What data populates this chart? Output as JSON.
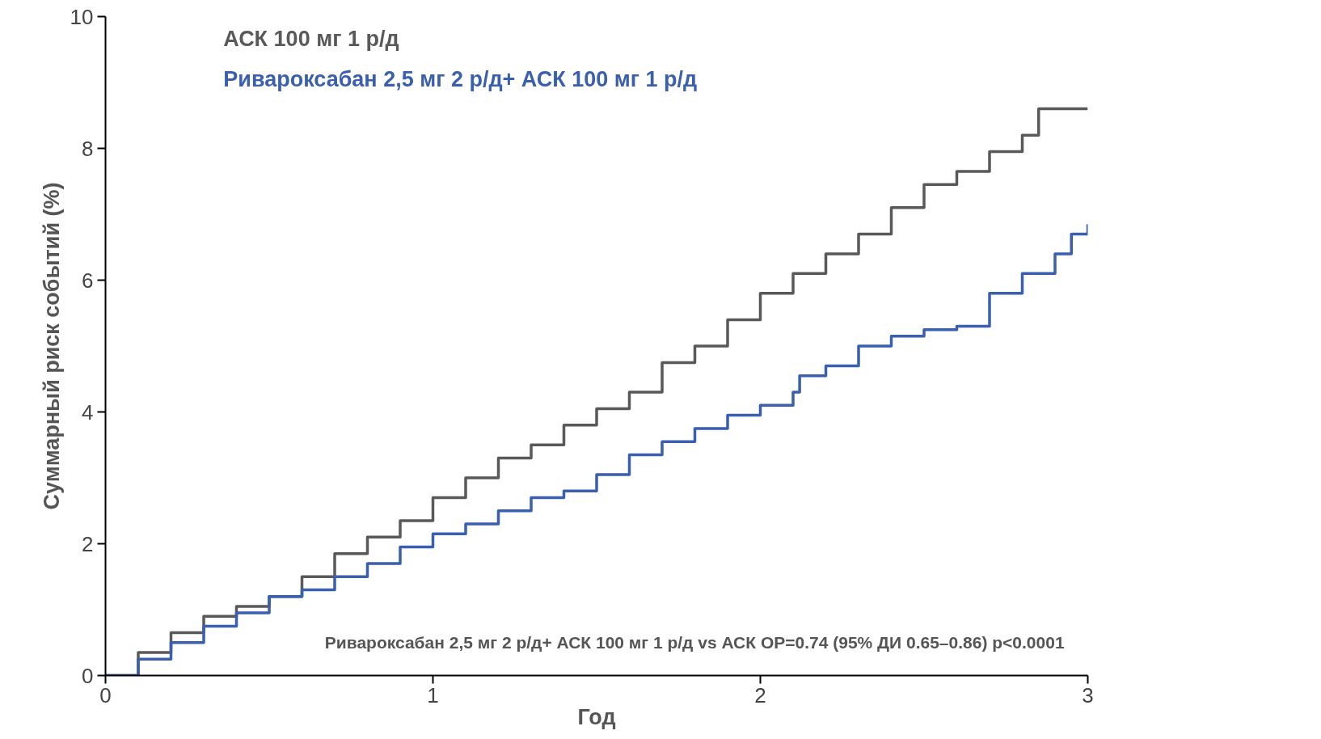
{
  "chart_data": {
    "type": "step",
    "xlabel": "Год",
    "ylabel": "Суммарный риск событий (%)",
    "xlim": [
      0,
      3
    ],
    "ylim": [
      0,
      10
    ],
    "xticks": [
      0,
      1,
      2,
      3
    ],
    "yticks": [
      0,
      2,
      4,
      6,
      8,
      10
    ],
    "grid": false,
    "legend": "top left",
    "marker": "none",
    "line_style": "solid",
    "annotations": [
      {
        "text": "Ривароксабан  2,5 мг 2 р/д+ АСК 100 мг 1 р/д  vs АСК     ОР=0.74 (95% ДИ 0.65–0.86)     p<0.0001"
      }
    ],
    "series": [
      {
        "name": "АСК 100 мг 1 р/д",
        "color": "#595959",
        "x": [
          0,
          0.1,
          0.2,
          0.3,
          0.4,
          0.5,
          0.6,
          0.7,
          0.8,
          0.9,
          1.0,
          1.1,
          1.2,
          1.3,
          1.4,
          1.5,
          1.6,
          1.7,
          1.8,
          1.9,
          2.0,
          2.1,
          2.2,
          2.3,
          2.4,
          2.5,
          2.6,
          2.7,
          2.8,
          2.85,
          3.0
        ],
        "values": [
          0,
          0.35,
          0.65,
          0.9,
          1.05,
          1.2,
          1.5,
          1.85,
          2.1,
          2.35,
          2.7,
          3.0,
          3.3,
          3.5,
          3.8,
          4.05,
          4.3,
          4.75,
          5.0,
          5.4,
          5.8,
          6.1,
          6.4,
          6.7,
          7.1,
          7.45,
          7.65,
          7.95,
          8.2,
          8.6,
          8.6
        ]
      },
      {
        "name": "Ривароксабан  2,5 мг 2 р/д+ АСК 100 мг 1 р/д",
        "color": "#3a5fad",
        "x": [
          0,
          0.1,
          0.2,
          0.3,
          0.4,
          0.5,
          0.6,
          0.7,
          0.8,
          0.9,
          1.0,
          1.1,
          1.2,
          1.3,
          1.4,
          1.5,
          1.6,
          1.7,
          1.8,
          1.9,
          2.0,
          2.1,
          2.12,
          2.2,
          2.3,
          2.4,
          2.5,
          2.6,
          2.7,
          2.8,
          2.9,
          2.95,
          3.0
        ],
        "values": [
          0,
          0.25,
          0.5,
          0.75,
          0.95,
          1.2,
          1.3,
          1.5,
          1.7,
          1.95,
          2.15,
          2.3,
          2.5,
          2.7,
          2.8,
          3.05,
          3.35,
          3.55,
          3.75,
          3.95,
          4.1,
          4.3,
          4.55,
          4.7,
          5.0,
          5.15,
          5.25,
          5.3,
          5.8,
          6.1,
          6.4,
          6.7,
          6.85
        ]
      }
    ]
  }
}
